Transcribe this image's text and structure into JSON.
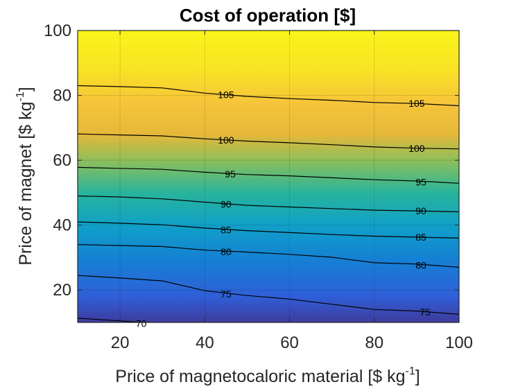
{
  "chart_data": {
    "type": "heatmap",
    "title": "Cost of operation [$]",
    "xlabel_main": "Price of magnetocaloric material [$ kg",
    "xlabel_sup": "-1",
    "xlabel_end": "]",
    "ylabel_main": "Price of magnet [$ kg",
    "ylabel_sup": "-1",
    "ylabel_end": "]",
    "xlim": [
      10,
      100
    ],
    "ylim": [
      10,
      100
    ],
    "x_ticks": [
      20,
      40,
      60,
      80,
      100
    ],
    "y_ticks": [
      20,
      40,
      60,
      80,
      100
    ],
    "grid": true,
    "colormap": "parula",
    "colorscale_stops": [
      {
        "y": 10,
        "color": "#3e3b9c"
      },
      {
        "y": 18,
        "color": "#2f5fd8"
      },
      {
        "y": 30,
        "color": "#1482d4"
      },
      {
        "y": 40,
        "color": "#10a1c8"
      },
      {
        "y": 50,
        "color": "#28b49a"
      },
      {
        "y": 60,
        "color": "#8ebf5a"
      },
      {
        "y": 68,
        "color": "#e6b83a"
      },
      {
        "y": 78,
        "color": "#f6c53a"
      },
      {
        "y": 88,
        "color": "#f9e324"
      },
      {
        "y": 100,
        "color": "#f9f41a"
      }
    ],
    "contours": [
      {
        "level": "70",
        "points": [
          [
            10,
            11.3
          ],
          [
            20,
            10.5
          ],
          [
            25,
            10
          ]
        ],
        "label_x": 25,
        "label_y": 9.7
      },
      {
        "level": "75",
        "points": [
          [
            10,
            24.5
          ],
          [
            20,
            23.7
          ],
          [
            30,
            22.8
          ],
          [
            40,
            19.8
          ],
          [
            50,
            18.3
          ],
          [
            60,
            17.2
          ],
          [
            70,
            15.6
          ],
          [
            80,
            14.0
          ],
          [
            90,
            13.5
          ],
          [
            100,
            12.5
          ]
        ],
        "label_x": 45,
        "label_y": 18.8
      },
      {
        "level": "75",
        "points": [],
        "label_x": 92,
        "label_y": 13.2
      },
      {
        "level": "80",
        "points": [
          [
            10,
            34.0
          ],
          [
            20,
            33.7
          ],
          [
            30,
            33.4
          ],
          [
            40,
            32.3
          ],
          [
            50,
            31.7
          ],
          [
            60,
            31.0
          ],
          [
            70,
            30.1
          ],
          [
            80,
            28.4
          ],
          [
            90,
            28.0
          ],
          [
            100,
            27.0
          ]
        ],
        "label_x": 45,
        "label_y": 31.8
      },
      {
        "level": "80",
        "points": [],
        "label_x": 91,
        "label_y": 27.6
      },
      {
        "level": "85",
        "points": [
          [
            10,
            41.0
          ],
          [
            20,
            40.6
          ],
          [
            30,
            40.1
          ],
          [
            40,
            39.1
          ],
          [
            50,
            38.3
          ],
          [
            60,
            37.7
          ],
          [
            70,
            37.1
          ],
          [
            80,
            36.6
          ],
          [
            90,
            36.3
          ],
          [
            100,
            36.0
          ]
        ],
        "label_x": 45,
        "label_y": 38.5
      },
      {
        "level": "85",
        "points": [],
        "label_x": 91,
        "label_y": 36.3
      },
      {
        "level": "90",
        "points": [
          [
            10,
            49.0
          ],
          [
            20,
            48.7
          ],
          [
            30,
            48.1
          ],
          [
            40,
            47.1
          ],
          [
            50,
            46.1
          ],
          [
            60,
            45.6
          ],
          [
            70,
            45.1
          ],
          [
            80,
            44.6
          ],
          [
            90,
            44.4
          ],
          [
            100,
            44.1
          ]
        ],
        "label_x": 45,
        "label_y": 46.5
      },
      {
        "level": "90",
        "points": [],
        "label_x": 91,
        "label_y": 44.4
      },
      {
        "level": "95",
        "points": [
          [
            10,
            57.8
          ],
          [
            20,
            57.5
          ],
          [
            30,
            57.2
          ],
          [
            40,
            56.3
          ],
          [
            50,
            55.6
          ],
          [
            60,
            55.2
          ],
          [
            70,
            54.6
          ],
          [
            80,
            54.0
          ],
          [
            90,
            53.6
          ],
          [
            100,
            52.9
          ]
        ],
        "label_x": 46,
        "label_y": 55.8
      },
      {
        "level": "95",
        "points": [],
        "label_x": 91,
        "label_y": 53.3
      },
      {
        "level": "100",
        "points": [
          [
            10,
            68.1
          ],
          [
            20,
            67.8
          ],
          [
            30,
            67.5
          ],
          [
            40,
            66.6
          ],
          [
            50,
            65.9
          ],
          [
            60,
            65.4
          ],
          [
            70,
            64.8
          ],
          [
            80,
            64.1
          ],
          [
            90,
            63.7
          ],
          [
            100,
            63.5
          ]
        ],
        "label_x": 45,
        "label_y": 66.2
      },
      {
        "level": "100",
        "points": [],
        "label_x": 90,
        "label_y": 63.7
      },
      {
        "level": "105",
        "points": [
          [
            10,
            83.0
          ],
          [
            20,
            82.7
          ],
          [
            30,
            82.3
          ],
          [
            40,
            80.7
          ],
          [
            50,
            79.7
          ],
          [
            60,
            79.0
          ],
          [
            70,
            78.5
          ],
          [
            80,
            77.8
          ],
          [
            90,
            77.5
          ],
          [
            100,
            76.8
          ]
        ],
        "label_x": 45,
        "label_y": 80.2
      },
      {
        "level": "105",
        "points": [],
        "label_x": 90,
        "label_y": 77.6
      }
    ]
  }
}
